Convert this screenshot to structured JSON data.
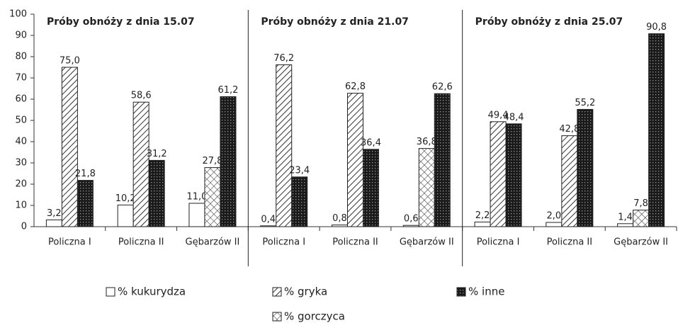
{
  "chart_data": {
    "type": "bar",
    "ylim": [
      0,
      100
    ],
    "yticks": [
      0,
      10,
      20,
      30,
      40,
      50,
      60,
      70,
      80,
      90,
      100
    ],
    "panels": [
      {
        "title": "Próby obnóży z dnia 15.07",
        "categories": [
          "Policzna I",
          "Policzna II",
          "Gębarzów II"
        ]
      },
      {
        "title": "Próby obnóży z dnia 21.07",
        "categories": [
          "Policzna I",
          "Policzna II",
          "Gębarzów II"
        ]
      },
      {
        "title": "Próby obnóży z dnia 25.07",
        "categories": [
          "Policzna I",
          "Policzna II",
          "Gębarzów II"
        ]
      }
    ],
    "series": [
      {
        "name": "% kukurydza",
        "pattern": "plain",
        "values": [
          [
            3.2,
            10.2,
            11.0
          ],
          [
            0.4,
            0.8,
            0.6
          ],
          [
            2.2,
            2.0,
            1.4
          ]
        ],
        "value_labels": [
          [
            "3,2",
            "10,2",
            "11,0"
          ],
          [
            "0,4",
            "0,8",
            "0,6"
          ],
          [
            "2,2",
            "2,0",
            "1,4"
          ]
        ]
      },
      {
        "name": "% gryka",
        "pattern": "hatch",
        "values": [
          [
            75.0,
            58.6,
            null
          ],
          [
            76.2,
            62.8,
            null
          ],
          [
            49.4,
            42.8,
            null
          ]
        ],
        "value_labels": [
          [
            "75,0",
            "58,6",
            null
          ],
          [
            "76,2",
            "62,8",
            null
          ],
          [
            "49,4",
            "42,8",
            null
          ]
        ]
      },
      {
        "name": "% inne",
        "pattern": "dots",
        "values": [
          [
            21.8,
            31.2,
            61.2
          ],
          [
            23.4,
            36.4,
            62.6
          ],
          [
            48.4,
            55.2,
            90.8
          ]
        ],
        "value_labels": [
          [
            "21,8",
            "31,2",
            "61,2"
          ],
          [
            "23,4",
            "36,4",
            "62,6"
          ],
          [
            "48,4",
            "55,2",
            "90,8"
          ]
        ]
      },
      {
        "name": "% gorczyca",
        "pattern": "cross",
        "values": [
          [
            null,
            null,
            27.8
          ],
          [
            null,
            null,
            36.8
          ],
          [
            null,
            null,
            7.8
          ]
        ],
        "value_labels": [
          [
            null,
            null,
            "27,8"
          ],
          [
            null,
            null,
            "36,8"
          ],
          [
            null,
            null,
            "7,8"
          ]
        ]
      }
    ]
  }
}
